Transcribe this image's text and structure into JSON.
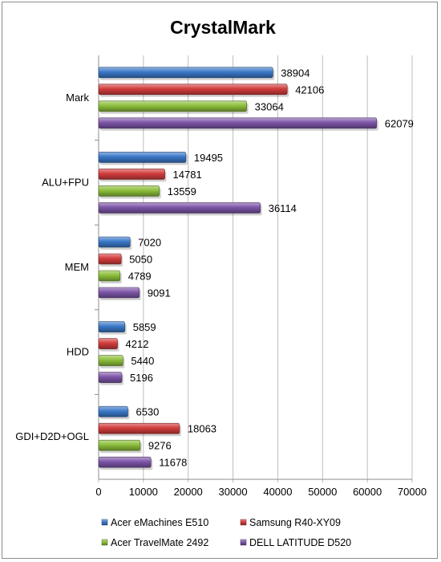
{
  "chart_data": {
    "type": "bar",
    "orientation": "horizontal",
    "title": "CrystalMark",
    "categories": [
      "Mark",
      "ALU+FPU",
      "MEM",
      "HDD",
      "GDI+D2D+OGL"
    ],
    "series": [
      {
        "name": "Acer eMachines E510",
        "color": "#3a78c8",
        "values": [
          38904,
          19495,
          7020,
          5859,
          6530
        ]
      },
      {
        "name": "Samsung R40-XY09",
        "color": "#d23c3c",
        "values": [
          42106,
          14781,
          5050,
          4212,
          18063
        ]
      },
      {
        "name": "Acer TravelMate 2492",
        "color": "#8cbf3a",
        "values": [
          33064,
          13559,
          4789,
          5440,
          9276
        ]
      },
      {
        "name": "DELL LATITUDE D520",
        "color": "#7d55a8",
        "values": [
          62079,
          36114,
          9091,
          5196,
          11678
        ]
      }
    ],
    "xlim": [
      0,
      70000
    ],
    "xticks": [
      0,
      10000,
      20000,
      30000,
      40000,
      50000,
      60000,
      70000
    ],
    "grid": true,
    "legend_position": "bottom",
    "xlabel": "",
    "ylabel": ""
  }
}
